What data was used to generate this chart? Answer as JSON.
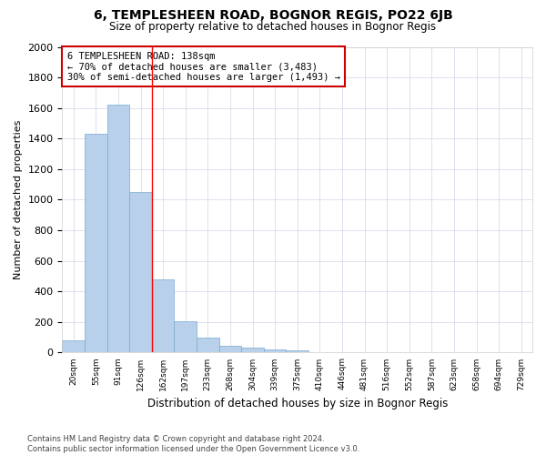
{
  "title": "6, TEMPLESHEEN ROAD, BOGNOR REGIS, PO22 6JB",
  "subtitle": "Size of property relative to detached houses in Bognor Regis",
  "xlabel": "Distribution of detached houses by size in Bognor Regis",
  "ylabel": "Number of detached properties",
  "categories": [
    "20sqm",
    "55sqm",
    "91sqm",
    "126sqm",
    "162sqm",
    "197sqm",
    "233sqm",
    "268sqm",
    "304sqm",
    "339sqm",
    "375sqm",
    "410sqm",
    "446sqm",
    "481sqm",
    "516sqm",
    "552sqm",
    "587sqm",
    "623sqm",
    "658sqm",
    "694sqm",
    "729sqm"
  ],
  "values": [
    80,
    1430,
    1620,
    1050,
    480,
    205,
    100,
    47,
    35,
    22,
    15,
    0,
    0,
    0,
    0,
    0,
    0,
    0,
    0,
    0,
    0
  ],
  "bar_color": "#b8d0ea",
  "bar_edge_color": "#7aaad0",
  "red_line_index": 3,
  "annotation_text": "6 TEMPLESHEEN ROAD: 138sqm\n← 70% of detached houses are smaller (3,483)\n30% of semi-detached houses are larger (1,493) →",
  "ylim": [
    0,
    2000
  ],
  "yticks": [
    0,
    200,
    400,
    600,
    800,
    1000,
    1200,
    1400,
    1600,
    1800,
    2000
  ],
  "footer_line1": "Contains HM Land Registry data © Crown copyright and database right 2024.",
  "footer_line2": "Contains public sector information licensed under the Open Government Licence v3.0.",
  "bg_color": "#ffffff",
  "plot_bg_color": "#ffffff",
  "title_fontsize": 10,
  "subtitle_fontsize": 8.5,
  "annotation_box_color": "#ffffff",
  "annotation_box_edge": "#cc0000",
  "grid_color": "#d0d4e8"
}
